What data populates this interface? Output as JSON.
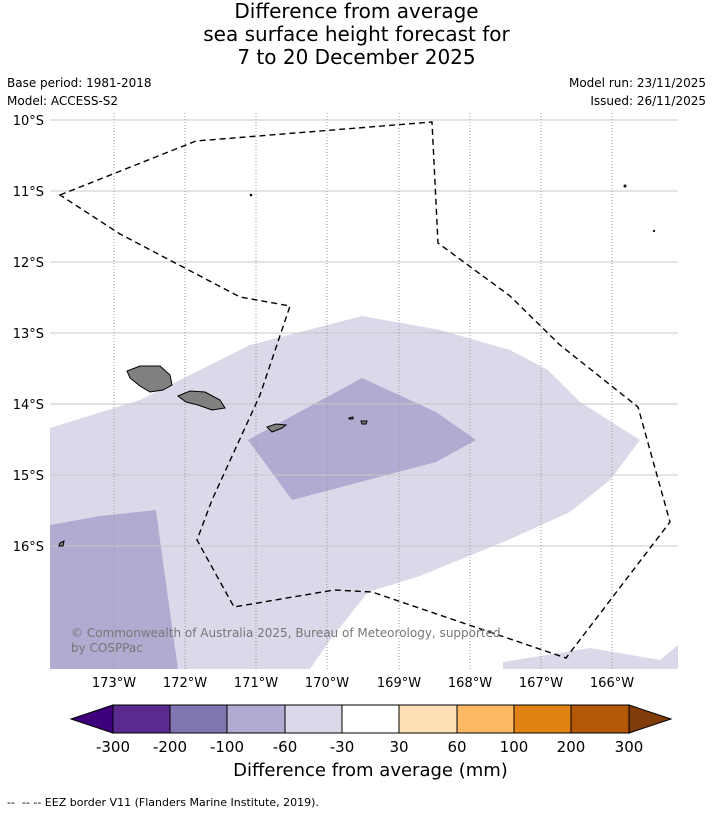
{
  "title": {
    "line1": "Difference from average",
    "line2": "sea surface height forecast for",
    "line3": "7 to 20 December 2025"
  },
  "meta": {
    "base_period": "Base period: 1981-2018",
    "model": "Model: ACCESS-S2",
    "model_run": "Model run: 23/11/2025",
    "issued": "Issued: 26/11/2025"
  },
  "map": {
    "latitudes": [
      "10°S",
      "11°S",
      "12°S",
      "13°S",
      "14°S",
      "15°S",
      "16°S"
    ],
    "longitudes": [
      "173°W",
      "172°W",
      "171°W",
      "170°W",
      "169°W",
      "168°W",
      "167°W",
      "166°W"
    ],
    "copyright": "© Commonwealth of Australia 2025, Bureau of Meteorology, supported by COSPPac"
  },
  "colorbar": {
    "labels": [
      "-300",
      "-200",
      "-100",
      "-60",
      "-30",
      "30",
      "60",
      "100",
      "200",
      "300"
    ],
    "colors": [
      "#3f007d",
      "#5a2a8f",
      "#8075ae",
      "#b0abd1",
      "#d9d9ea",
      "#ffffff",
      "#fee0b6",
      "#fdb863",
      "#e08214",
      "#b35806",
      "#7f3b08"
    ],
    "title": "Difference from average (mm)"
  },
  "legend": {
    "eez": "-- EEZ border V11 (Flanders Marine Institute, 2019)."
  }
}
